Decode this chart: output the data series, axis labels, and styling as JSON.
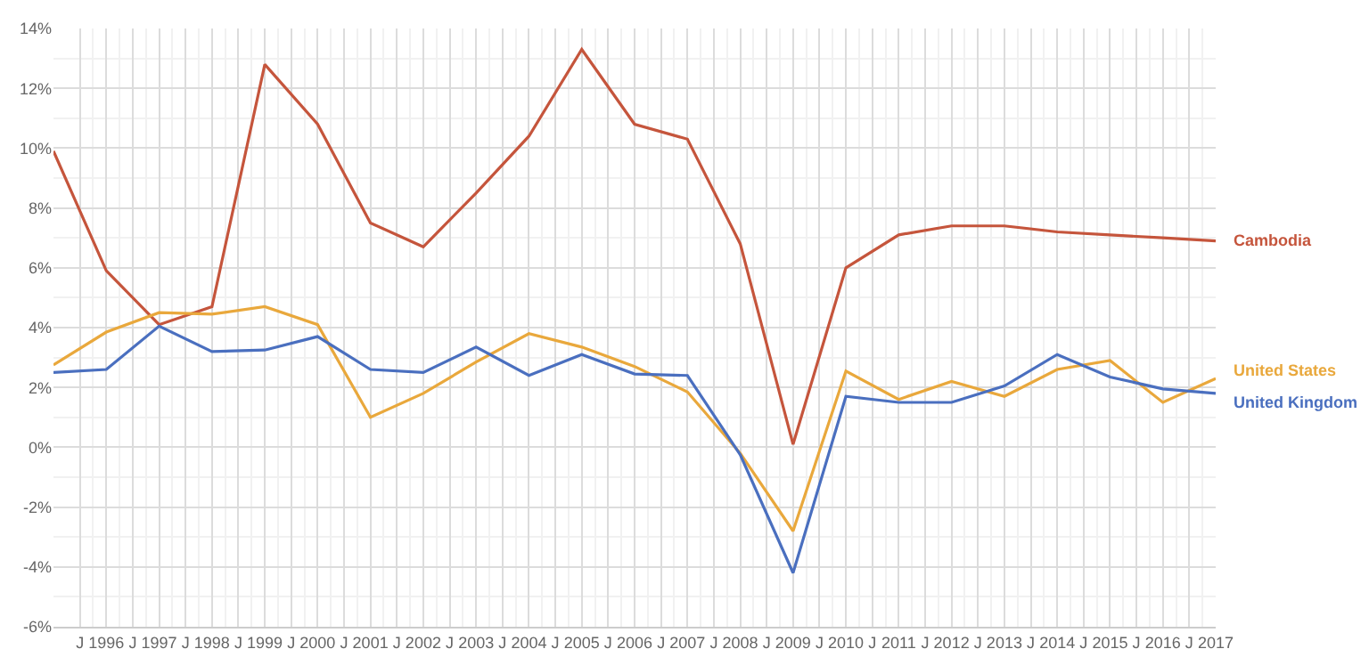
{
  "chart_data": {
    "type": "line",
    "x": [
      1995,
      1996,
      1997,
      1998,
      1999,
      2000,
      2001,
      2002,
      2003,
      2004,
      2005,
      2006,
      2007,
      2008,
      2009,
      2010,
      2011,
      2012,
      2013,
      2014,
      2015,
      2016,
      2017
    ],
    "series": [
      {
        "name": "Cambodia",
        "color": "#c5553c",
        "values": [
          9.9,
          5.9,
          4.1,
          4.7,
          12.8,
          10.8,
          7.5,
          6.7,
          8.5,
          10.4,
          13.3,
          10.8,
          10.3,
          6.8,
          0.1,
          6.0,
          7.1,
          7.4,
          7.4,
          7.2,
          7.1,
          7.0,
          6.9
        ]
      },
      {
        "name": "United States",
        "color": "#e9a83c",
        "values": [
          2.75,
          3.85,
          4.5,
          4.45,
          4.7,
          4.1,
          1.0,
          1.8,
          2.85,
          3.8,
          3.35,
          2.7,
          1.85,
          -0.2,
          -2.8,
          2.55,
          1.6,
          2.2,
          1.7,
          2.6,
          2.9,
          1.5,
          2.3
        ]
      },
      {
        "name": "United Kingdom",
        "color": "#4a6fbf",
        "values": [
          2.5,
          2.6,
          4.05,
          3.2,
          3.25,
          3.7,
          2.6,
          2.5,
          3.35,
          2.4,
          3.1,
          2.45,
          2.4,
          -0.25,
          -4.2,
          1.7,
          1.5,
          1.5,
          2.05,
          3.1,
          2.35,
          1.95,
          1.8
        ]
      }
    ],
    "xlim": [
      1995,
      2017
    ],
    "xticks": [
      {
        "value": 1995.5,
        "label": "J"
      },
      1996,
      {
        "value": 1996.5,
        "label": "J"
      },
      1997,
      {
        "value": 1997.5,
        "label": "J"
      },
      1998,
      {
        "value": 1998.5,
        "label": "J"
      },
      1999,
      {
        "value": 1999.5,
        "label": "J"
      },
      2000,
      {
        "value": 2000.5,
        "label": "J"
      },
      2001,
      {
        "value": 2001.5,
        "label": "J"
      },
      2002,
      {
        "value": 2002.5,
        "label": "J"
      },
      2003,
      {
        "value": 2003.5,
        "label": "J"
      },
      2004,
      {
        "value": 2004.5,
        "label": "J"
      },
      2005,
      {
        "value": 2005.5,
        "label": "J"
      },
      2006,
      {
        "value": 2006.5,
        "label": "J"
      },
      2007,
      {
        "value": 2007.5,
        "label": "J"
      },
      2008,
      {
        "value": 2008.5,
        "label": "J"
      },
      2009,
      {
        "value": 2009.5,
        "label": "J"
      },
      2010,
      {
        "value": 2010.5,
        "label": "J"
      },
      2011,
      {
        "value": 2011.5,
        "label": "J"
      },
      2012,
      {
        "value": 2012.5,
        "label": "J"
      },
      2013,
      {
        "value": 2013.5,
        "label": "J"
      },
      2014,
      {
        "value": 2014.5,
        "label": "J"
      },
      2015,
      {
        "value": 2015.5,
        "label": "J"
      },
      2016,
      {
        "value": 2016.5,
        "label": "J"
      },
      2017
    ],
    "ylim": [
      -6,
      14
    ],
    "yticks": [
      {
        "value": -6,
        "label": "-6%"
      },
      {
        "value": -4,
        "label": "-4%"
      },
      {
        "value": -2,
        "label": "-2%"
      },
      {
        "value": 0,
        "label": "0%"
      },
      {
        "value": 2,
        "label": "2%"
      },
      {
        "value": 4,
        "label": "4%"
      },
      {
        "value": 6,
        "label": "6%"
      },
      {
        "value": 8,
        "label": "8%"
      },
      {
        "value": 10,
        "label": "10%"
      },
      {
        "value": 12,
        "label": "12%"
      },
      {
        "value": 14,
        "label": "14%"
      }
    ],
    "grid": true,
    "marker": "none",
    "line_style": "solid"
  }
}
